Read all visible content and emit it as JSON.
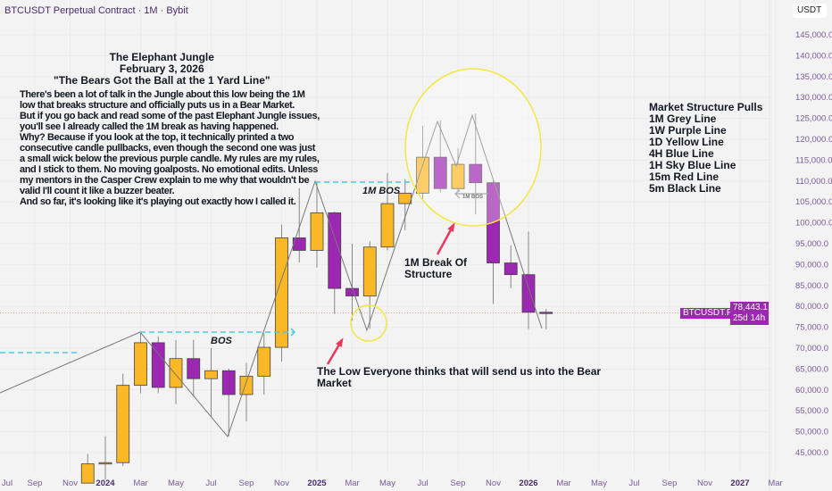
{
  "header": {
    "title": "BTCUSDT Perpetual Contract · 1M · Bybit",
    "currency": "USDT"
  },
  "price_axis": {
    "labels": [
      "145,000.0",
      "140,000.0",
      "135,000.0",
      "130,000.0",
      "125,000.0",
      "120,000.0",
      "115,000.0",
      "110,000.0",
      "105,000.0",
      "100,000.0",
      "95,000.0",
      "90,000.0",
      "85,000.0",
      "80,000.0",
      "75,000.0",
      "70,000.0",
      "65,000.0",
      "60,000.0",
      "55,000.0",
      "50,000.0",
      "45,000.0"
    ],
    "values": [
      145000,
      140000,
      135000,
      130000,
      125000,
      120000,
      115000,
      110000,
      105000,
      100000,
      95000,
      90000,
      85000,
      80000,
      75000,
      70000,
      65000,
      60000,
      55000,
      50000,
      45000
    ]
  },
  "time_axis": {
    "labels": [
      "Jul",
      "Sep",
      "Nov",
      "2024",
      "Mar",
      "May",
      "Jul",
      "Sep",
      "Nov",
      "2025",
      "Mar",
      "May",
      "Jul",
      "Sep",
      "Nov",
      "2026",
      "Mar",
      "May",
      "Jul",
      "Sep",
      "Nov",
      "2027",
      "Mar"
    ],
    "start_month_index": 0
  },
  "current_price": {
    "symbol": "BTCUSDT.P",
    "price": "78,443.1",
    "countdown": "25d 14h",
    "value": 78443.1
  },
  "colors": {
    "up": "#fbb826",
    "down": "#9c27b0",
    "wick": "#888888",
    "bos": "#4dc9e0",
    "circle": "#f5e642",
    "arrow": "#e8385c"
  },
  "candles": [
    {
      "m": "2023-12",
      "o": 37.7,
      "h": 44.7,
      "l": 37.6,
      "c": 42.3
    },
    {
      "m": "2024-01",
      "o": 42.3,
      "h": 48.9,
      "l": 38.5,
      "c": 42.6
    },
    {
      "m": "2024-02",
      "o": 42.6,
      "h": 63.9,
      "l": 41.8,
      "c": 61.1
    },
    {
      "m": "2024-03",
      "o": 61.1,
      "h": 73.8,
      "l": 59.2,
      "c": 71.3
    },
    {
      "m": "2024-04",
      "o": 71.3,
      "h": 72.8,
      "l": 59.2,
      "c": 60.6
    },
    {
      "m": "2024-05",
      "o": 60.6,
      "h": 71.9,
      "l": 56.6,
      "c": 67.5
    },
    {
      "m": "2024-06",
      "o": 67.5,
      "h": 72.0,
      "l": 58.4,
      "c": 62.7
    },
    {
      "m": "2024-07",
      "o": 62.7,
      "h": 70.0,
      "l": 53.5,
      "c": 64.6
    },
    {
      "m": "2024-08",
      "o": 64.6,
      "h": 65.1,
      "l": 49.0,
      "c": 58.9
    },
    {
      "m": "2024-09",
      "o": 58.9,
      "h": 66.5,
      "l": 52.5,
      "c": 63.3
    },
    {
      "m": "2024-10",
      "o": 63.3,
      "h": 73.6,
      "l": 58.9,
      "c": 70.2
    },
    {
      "m": "2024-11",
      "o": 70.2,
      "h": 99.6,
      "l": 66.8,
      "c": 96.4
    },
    {
      "m": "2024-12",
      "o": 96.4,
      "h": 108.3,
      "l": 90.5,
      "c": 93.4
    },
    {
      "m": "2025-01",
      "o": 93.4,
      "h": 109.6,
      "l": 89.3,
      "c": 102.4
    },
    {
      "m": "2025-02",
      "o": 102.4,
      "h": 102.7,
      "l": 78.2,
      "c": 84.3
    },
    {
      "m": "2025-03",
      "o": 84.3,
      "h": 95.0,
      "l": 76.6,
      "c": 82.5
    },
    {
      "m": "2025-04",
      "o": 82.5,
      "h": 95.6,
      "l": 74.6,
      "c": 94.2
    },
    {
      "m": "2025-05",
      "o": 94.2,
      "h": 111.9,
      "l": 93.4,
      "c": 104.6
    },
    {
      "m": "2025-06",
      "o": 104.6,
      "h": 110.5,
      "l": 98.2,
      "c": 107.1
    },
    {
      "m": "2025-07",
      "o": 107.1,
      "h": 123.2,
      "l": 105.3,
      "c": 115.7
    },
    {
      "m": "2025-08",
      "o": 115.7,
      "h": 124.5,
      "l": 107.3,
      "c": 108.2
    },
    {
      "m": "2025-09",
      "o": 108.2,
      "h": 117.9,
      "l": 107.3,
      "c": 114.0
    },
    {
      "m": "2025-10",
      "o": 114.0,
      "h": 126.2,
      "l": 102.0,
      "c": 109.6
    },
    {
      "m": "2025-11",
      "o": 109.6,
      "h": 110.2,
      "l": 80.6,
      "c": 90.4
    },
    {
      "m": "2025-12",
      "o": 90.4,
      "h": 94.6,
      "l": 84.4,
      "c": 87.6
    },
    {
      "m": "2026-01",
      "o": 87.6,
      "h": 97.9,
      "l": 74.6,
      "c": 78.6
    },
    {
      "m": "2026-02",
      "o": 78.6,
      "h": 79.4,
      "l": 74.5,
      "c": 78.4
    }
  ],
  "annotations": {
    "heading": [
      "The Elephant Jungle",
      "February 3, 2026",
      "\"The Bears Got the Ball at the 1 Yard Line\""
    ],
    "body": "There's been a lot of talk in the Jungle about this low being the 1M\nlow that breaks structure and officially puts us in a Bear Market.\nBut if you go back and read some of the past Elephant Jungle issues,\nyou'll see I already called the 1M break as having happened.\nWhy? Because if you look at the top, it technically printed a two\nconsecutive candle pullbacks, even though the second one was just\na small wick below the previous purple candle. My rules are my rules,\nand I stick to them. No moving goalposts. No emotional edits. Unless\nmy mentors in the Casper Crew explain to me why that wouldn't be\nvalid I'll count it like a buzzer beater.\nAnd so far, it's looking like it's playing out exactly how I called it.",
    "structure": "Market Structure Pulls\n1M Grey Line\n1W Purple Line\n1D Yellow Line\n4H Blue Line\n1H Sky Blue Line\n15m Red Line\n5m Black Line",
    "bos": "BOS",
    "bos_1m": "1M BOS",
    "bos_1m_small": "1M BOS",
    "break": "1M Break Of\nStructure",
    "low": "The Low Everyone thinks that will send us into the Bear\nMarket"
  }
}
